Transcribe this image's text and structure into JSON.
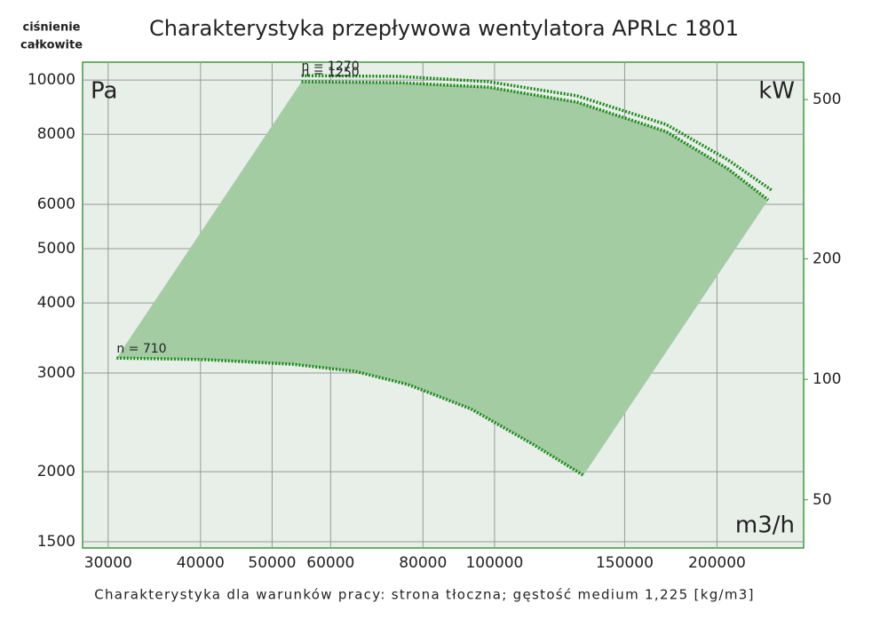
{
  "chart_data": {
    "type": "line",
    "title": "Charakterystyka przepływowa wentylatora APRLc 1801",
    "y_label": [
      "ciśnienie",
      "całkowite"
    ],
    "y_unit": "Pa",
    "y2_unit": "kW",
    "x_unit": "m3/h",
    "note": "Charakterystyka dla warunków pracy: strona tłoczna; gęstość medium 1,225 [kg/m3]",
    "log_x": true,
    "log_y": true,
    "grid": true,
    "xlim": [
      27700,
      262000
    ],
    "xticks": [
      30000,
      40000,
      50000,
      60000,
      80000,
      100000,
      150000,
      200000
    ],
    "ylim": [
      1462,
      10760
    ],
    "yticks": [
      1500,
      2000,
      3000,
      4000,
      5000,
      6000,
      8000,
      10000
    ],
    "y2lim": [
      37.9,
      620
    ],
    "y2ticks": [
      50,
      100,
      200,
      500
    ],
    "area_color": "#a3cca3",
    "series": [
      {
        "name": "n = 1270",
        "color": "#1a8a1a",
        "x": [
          54800,
          74300,
          98100,
          129300,
          170700,
          207000,
          237900
        ],
        "values": [
          10180,
          10150,
          9930,
          9370,
          8330,
          7200,
          6340
        ]
      },
      {
        "name": "n = 1250",
        "color": "#1a8a1a",
        "x": [
          54800,
          74300,
          98100,
          129300,
          170700,
          207000,
          234600
        ],
        "values": [
          9930,
          9890,
          9710,
          9130,
          8090,
          6940,
          6110
        ]
      },
      {
        "name": "n = 710",
        "color": "#1a8a1a",
        "x": [
          30800,
          40500,
          53300,
          64800,
          76400,
          92800,
          112600,
          131900
        ],
        "values": [
          3190,
          3170,
          3110,
          3020,
          2860,
          2590,
          2240,
          1970
        ]
      }
    ]
  }
}
